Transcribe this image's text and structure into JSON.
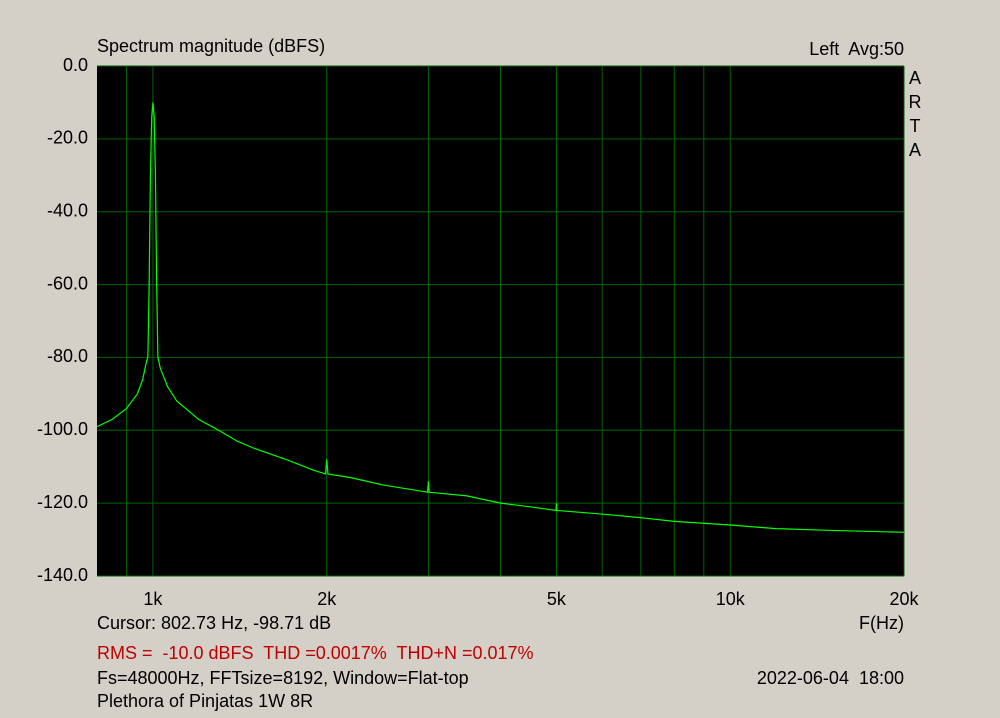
{
  "chart_data": {
    "type": "line",
    "title": "Spectrum magnitude (dBFS)",
    "channel_label": "Left  Avg:50",
    "watermark": "ARTA",
    "x_label": "F(Hz)",
    "log_x": true,
    "grid": true,
    "color": "#00ff00",
    "grid_color": "#006400",
    "background": "#000000",
    "xlim": [
      800,
      20000
    ],
    "ylim": [
      -140,
      0
    ],
    "xticks": [
      {
        "value": 1000,
        "label": "1k"
      },
      {
        "value": 2000,
        "label": "2k"
      },
      {
        "value": 5000,
        "label": "5k"
      },
      {
        "value": 10000,
        "label": "10k"
      },
      {
        "value": 20000,
        "label": "20k"
      }
    ],
    "xminor": [
      900,
      3000,
      4000,
      6000,
      7000,
      8000,
      9000
    ],
    "yticks": [
      {
        "value": 0,
        "label": "0.0"
      },
      {
        "value": -20,
        "label": "-20.0"
      },
      {
        "value": -40,
        "label": "-40.0"
      },
      {
        "value": -60,
        "label": "-60.0"
      },
      {
        "value": -80,
        "label": "-80.0"
      },
      {
        "value": -100,
        "label": "-100.0"
      },
      {
        "value": -120,
        "label": "-120.0"
      },
      {
        "value": -140,
        "label": "-140.0"
      }
    ],
    "x": [
      800,
      850,
      900,
      940,
      960,
      975,
      980,
      985,
      990,
      995,
      1000,
      1005,
      1010,
      1015,
      1020,
      1030,
      1060,
      1100,
      1200,
      1300,
      1400,
      1500,
      1700,
      1900,
      1990,
      2000,
      2010,
      2200,
      2500,
      2990,
      3000,
      3010,
      3500,
      4000,
      4500,
      4990,
      5000,
      5010,
      6000,
      7000,
      8000,
      10000,
      12000,
      15000,
      20000
    ],
    "values": [
      -99,
      -97,
      -94,
      -90,
      -86,
      -81,
      -80,
      -60,
      -30,
      -14,
      -10,
      -14,
      -30,
      -60,
      -80,
      -83,
      -88,
      -92,
      -97,
      -100,
      -103,
      -105,
      -108,
      -111,
      -112,
      -108,
      -112,
      -113,
      -115,
      -117,
      -114,
      -117,
      -118,
      -120,
      -121,
      -122,
      -120,
      -122,
      -123,
      -124,
      -125,
      -126,
      -127,
      -127.5,
      -128
    ]
  },
  "footer": {
    "cursor": "Cursor: 802.73 Hz, -98.71 dB",
    "measurements": "RMS =  -10.0 dBFS  THD =0.0017%  THD+N =0.017%",
    "settings": "Fs=48000Hz, FFTsize=8192, Window=Flat-top",
    "timestamp": "2022-06-04  18:00",
    "device": "Plethora of Pinjatas 1W 8R"
  }
}
